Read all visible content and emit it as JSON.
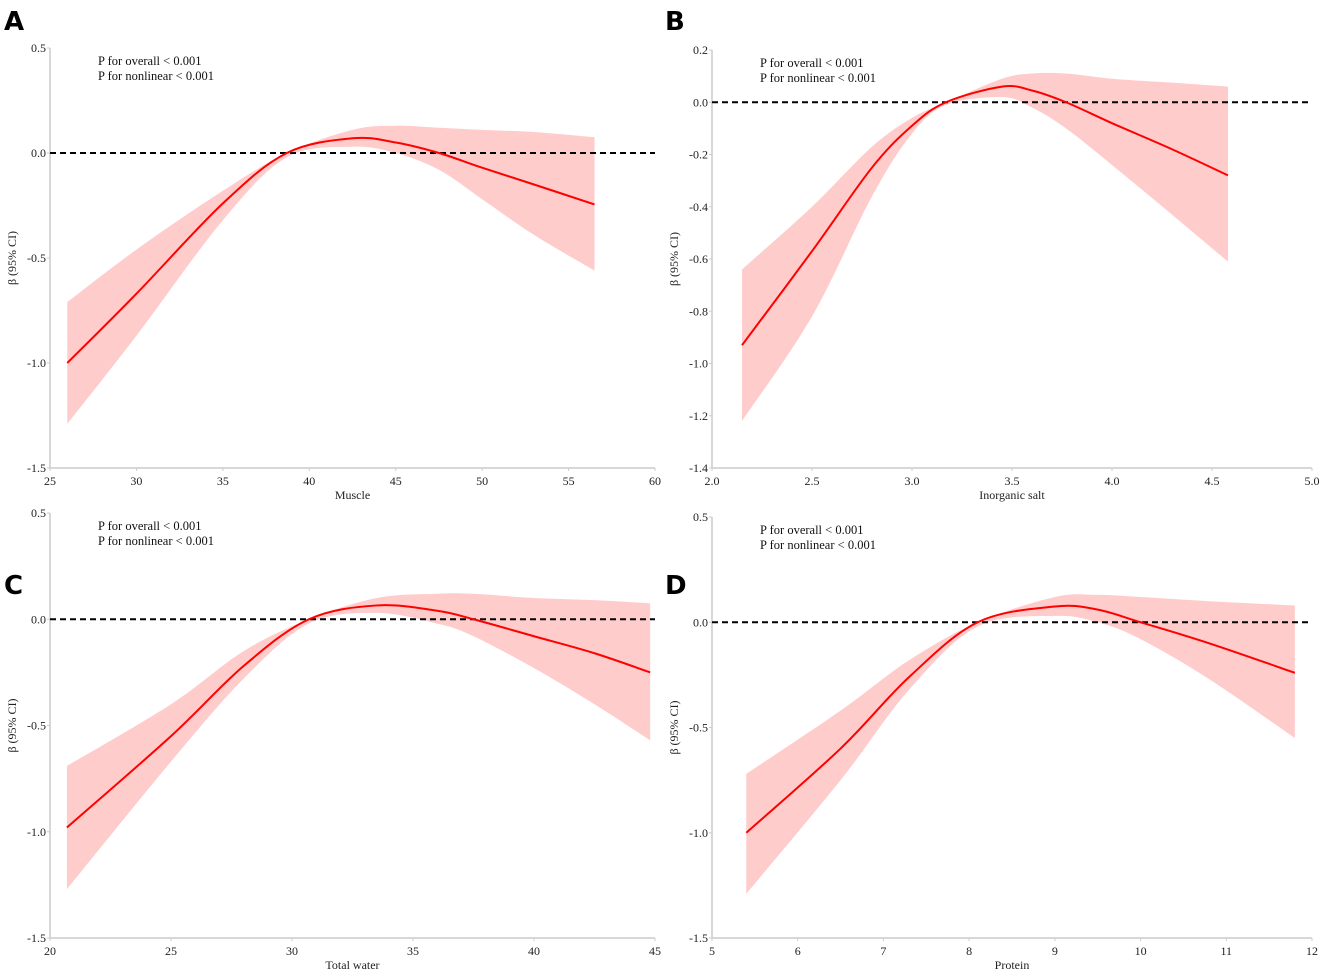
{
  "colors": {
    "fit": "#ff0000",
    "ci": "#ffcccc",
    "ref": "#000000",
    "axis": "#cccccc"
  },
  "chart_data": [
    {
      "panel": "A",
      "type": "line",
      "xlabel": "Muscle",
      "ylabel": "β (95% CI)",
      "xlim": [
        25,
        60
      ],
      "ylim": [
        -1.5,
        0.5
      ],
      "xticks": [
        25,
        30,
        35,
        40,
        45,
        50,
        55,
        60
      ],
      "yticks": [
        "-1.5",
        "-1.0",
        "-0.5",
        "0.0",
        "0.5"
      ],
      "annotations": [
        "P for overall < 0.001",
        "P for nonlinear < 0.001"
      ],
      "reference_line": 0,
      "x": [
        26,
        30,
        35,
        38.7,
        42.5,
        45,
        47.5,
        50,
        53,
        56.5
      ],
      "fit": [
        -1.0,
        -0.67,
        -0.24,
        0.0,
        0.07,
        0.05,
        0.0,
        -0.07,
        -0.15,
        -0.245
      ],
      "lower": [
        -1.29,
        -0.87,
        -0.32,
        -0.02,
        0.03,
        0.0,
        -0.08,
        -0.22,
        -0.39,
        -0.56
      ],
      "upper": [
        -0.71,
        -0.46,
        -0.18,
        0.0,
        0.11,
        0.13,
        0.12,
        0.11,
        0.1,
        0.075
      ]
    },
    {
      "panel": "B",
      "type": "line",
      "xlabel": "Inorganic salt",
      "ylabel": "β (95% CI)",
      "xlim": [
        2.0,
        5.0
      ],
      "ylim": [
        -1.4,
        0.2
      ],
      "xticks": [
        "2.0",
        "2.5",
        "3.0",
        "3.5",
        "4.0",
        "4.5",
        "5.0"
      ],
      "yticks": [
        "-1.4",
        "-1.2",
        "-1.0",
        "-0.8",
        "-0.6",
        "-0.4",
        "-0.2",
        "0.0",
        "0.2"
      ],
      "annotations": [
        "P for overall < 0.001",
        "P for nonlinear < 0.001"
      ],
      "reference_line": 0,
      "x": [
        2.15,
        2.5,
        2.8,
        3.0,
        3.17,
        3.45,
        3.6,
        3.77,
        4.0,
        4.3,
        4.58
      ],
      "fit": [
        -0.93,
        -0.57,
        -0.25,
        -0.09,
        0.0,
        0.06,
        0.045,
        0.0,
        -0.08,
        -0.18,
        -0.28
      ],
      "lower": [
        -1.22,
        -0.82,
        -0.36,
        -0.12,
        -0.01,
        0.02,
        -0.02,
        -0.1,
        -0.24,
        -0.43,
        -0.61
      ],
      "upper": [
        -0.64,
        -0.4,
        -0.17,
        -0.06,
        0.0,
        0.09,
        0.11,
        0.11,
        0.09,
        0.075,
        0.06
      ]
    },
    {
      "panel": "C",
      "type": "line",
      "xlabel": "Total water",
      "ylabel": "β (95% CI)",
      "xlim": [
        20,
        45
      ],
      "ylim": [
        -1.5,
        0.5
      ],
      "xticks": [
        20,
        25,
        30,
        35,
        40,
        45
      ],
      "yticks": [
        "-1.5",
        "-1.0",
        "-0.5",
        "0.0",
        "0.5"
      ],
      "annotations": [
        "P for overall < 0.001",
        "P for nonlinear < 0.001"
      ],
      "reference_line": 0,
      "x": [
        20.7,
        25,
        28,
        30.7,
        33.5,
        36,
        37.5,
        40,
        42.5,
        44.8
      ],
      "fit": [
        -0.98,
        -0.55,
        -0.22,
        0.0,
        0.065,
        0.04,
        0.0,
        -0.08,
        -0.16,
        -0.25
      ],
      "lower": [
        -1.27,
        -0.67,
        -0.28,
        -0.02,
        0.03,
        -0.02,
        -0.08,
        -0.23,
        -0.4,
        -0.57
      ],
      "upper": [
        -0.69,
        -0.4,
        -0.15,
        0.0,
        0.1,
        0.12,
        0.12,
        0.1,
        0.09,
        0.075
      ]
    },
    {
      "panel": "D",
      "type": "line",
      "xlabel": "Protein",
      "ylabel": "β (95% CI)",
      "xlim": [
        5,
        12
      ],
      "ylim": [
        -1.5,
        0.5
      ],
      "xticks": [
        5,
        6,
        7,
        8,
        9,
        10,
        11,
        12
      ],
      "yticks": [
        "-1.5",
        "-1.0",
        "-0.5",
        "0.0",
        "0.5"
      ],
      "annotations": [
        "P for overall < 0.001",
        "P for nonlinear < 0.001"
      ],
      "reference_line": 0,
      "x": [
        5.4,
        6.5,
        7.3,
        8.1,
        9.0,
        9.5,
        10.0,
        10.8,
        11.8
      ],
      "fit": [
        -1.0,
        -0.6,
        -0.26,
        0.0,
        0.075,
        0.06,
        0.0,
        -0.1,
        -0.24
      ],
      "lower": [
        -1.29,
        -0.75,
        -0.32,
        -0.02,
        0.03,
        0.0,
        -0.08,
        -0.27,
        -0.55
      ],
      "upper": [
        -0.72,
        -0.42,
        -0.18,
        0.0,
        0.12,
        0.13,
        0.12,
        0.1,
        0.08
      ]
    }
  ]
}
